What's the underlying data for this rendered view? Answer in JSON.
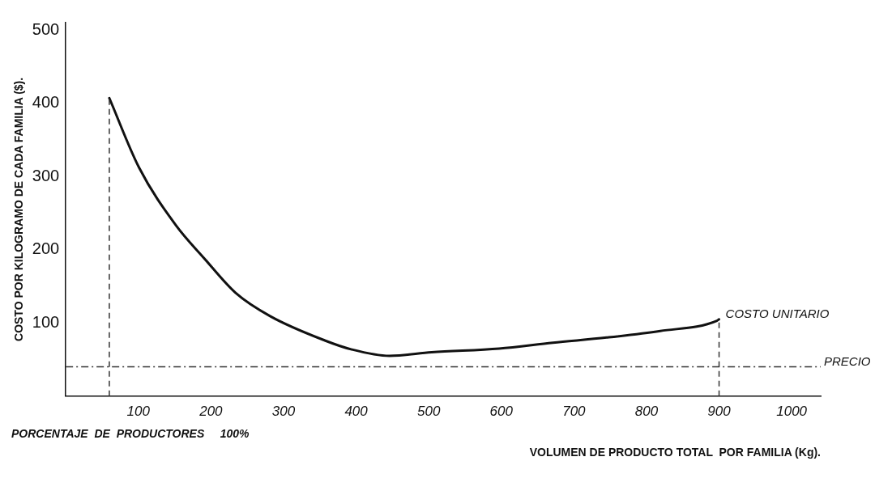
{
  "chart_data": {
    "type": "line",
    "xlabel": "VOLUMEN DE PRODUCTO TOTAL  POR FAMILIA (Kg).",
    "ylabel": "COSTO POR KILOGRAMO DE CADA FAMILIA ($).",
    "series": [
      {
        "name": "COSTO UNITARIO",
        "color": "#111111",
        "x": [
          60,
          101,
          152,
          190,
          234,
          282,
          357,
          393,
          446,
          504,
          597,
          671,
          745,
          819,
          897,
          900
        ],
        "values": [
          407,
          312,
          233,
          189,
          141,
          109,
          76,
          64,
          55,
          60,
          65,
          73,
          80,
          89,
          103,
          105
        ]
      }
    ],
    "xlim": [
      0,
      1040
    ],
    "xticks": [
      100,
      200,
      300,
      400,
      500,
      600,
      700,
      800,
      900,
      1000
    ],
    "ylim": [
      0,
      510
    ],
    "yticks": [
      100,
      200,
      300,
      400,
      500
    ],
    "ref_lines": [
      {
        "axis": "y",
        "value": 40,
        "label": "PRECIO",
        "color": "#333333",
        "line_style": "dashdot"
      },
      {
        "axis": "x",
        "value": 60,
        "label": null,
        "color": "#333333",
        "line_style": "dashed"
      },
      {
        "axis": "x",
        "value": 900,
        "label": null,
        "color": "#333333",
        "line_style": "dashed"
      }
    ],
    "annotations": [
      "PORCENTAJE  DE  PRODUCTORES     100%"
    ],
    "grid": false,
    "legend": false,
    "marker": "none",
    "line_style": "solid"
  }
}
